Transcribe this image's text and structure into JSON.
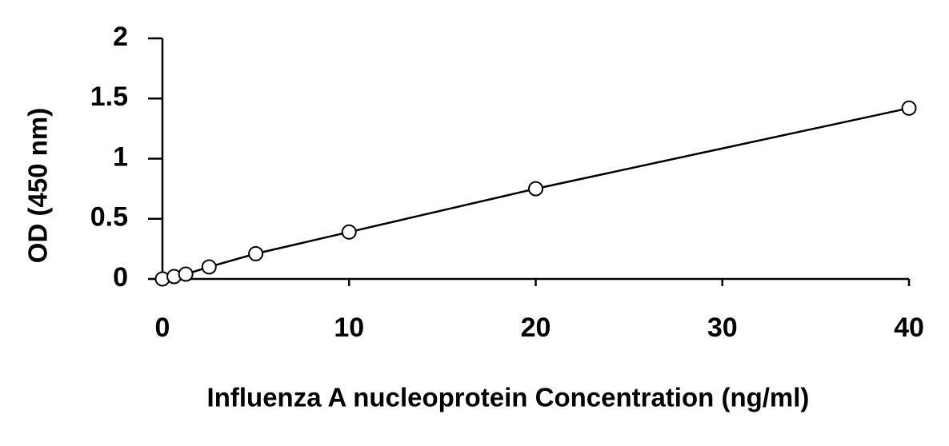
{
  "chart_data": {
    "type": "scatter",
    "x_label": "Influenza A nucleoprotein Concentration (ng/ml)",
    "y_label": "OD (450 nm)",
    "x": [
      0,
      0.625,
      1.25,
      2.5,
      5,
      10,
      20,
      40
    ],
    "values": [
      0,
      0.02,
      0.04,
      0.1,
      0.21,
      0.39,
      0.75,
      1.42
    ],
    "color": "#000000",
    "marker": "open-circle",
    "connect": true,
    "xlim": [
      0,
      40
    ],
    "xticks": [
      0,
      10,
      20,
      30,
      40
    ],
    "ylim": [
      0,
      2
    ],
    "yticks": [
      0,
      0.5,
      1,
      1.5,
      2
    ],
    "grid": false
  }
}
